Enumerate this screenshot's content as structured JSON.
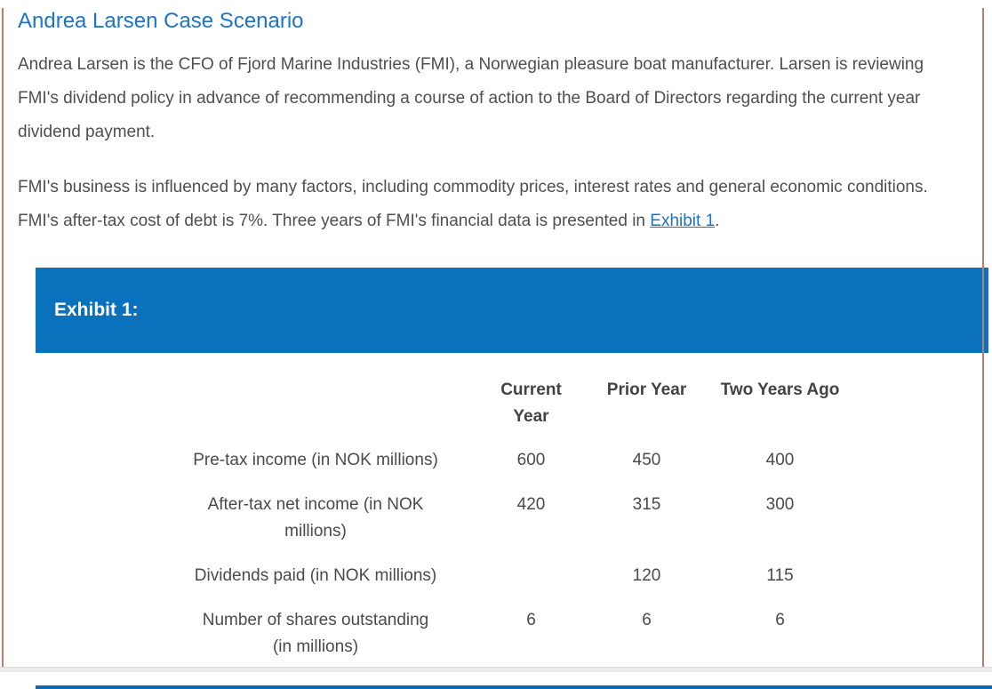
{
  "page": {
    "title": "Andrea Larsen Case Scenario",
    "paragraph1": "Andrea Larsen is the CFO of Fjord Marine Industries (FMI), a Norwegian pleasure boat manufacturer. Larsen is reviewing FMI's dividend policy in advance of recommending a course of action to the Board of Directors regarding the current year dividend payment.",
    "paragraph2_before_link": "FMI's business is influenced by many factors, including commodity prices, interest rates and general economic conditions. FMI's after-tax cost of debt is 7%. Three years of FMI's financial data is presented in ",
    "paragraph2_link": "Exhibit 1",
    "paragraph2_after_link": ".",
    "colors": {
      "banner_blue": "#0a71bd",
      "title_blue": "#1b74c9",
      "body_text_gray": "#4f4f4f",
      "side_border_rose": "#bd7c70",
      "divider_blue": "#0f68b0"
    }
  },
  "exhibit": {
    "banner_label": "Exhibit 1:",
    "table": {
      "columns": {
        "current": "Current Year",
        "prior": "Prior Year",
        "two_years_ago": "Two Years Ago"
      },
      "rows": [
        {
          "label": "Pre-tax income (in NOK millions)",
          "label2": "",
          "current": "600",
          "prior": "450",
          "two_years_ago": "400"
        },
        {
          "label": "After-tax net income (in NOK",
          "label2": "millions)",
          "current": "420",
          "prior": "315",
          "two_years_ago": "300"
        },
        {
          "label": "Dividends paid (in NOK millions)",
          "label2": "",
          "current": "",
          "prior": "120",
          "two_years_ago": "115"
        },
        {
          "label": "Number of shares outstanding",
          "label2": "(in millions)",
          "current": "6",
          "prior": "6",
          "two_years_ago": "6"
        }
      ]
    }
  }
}
